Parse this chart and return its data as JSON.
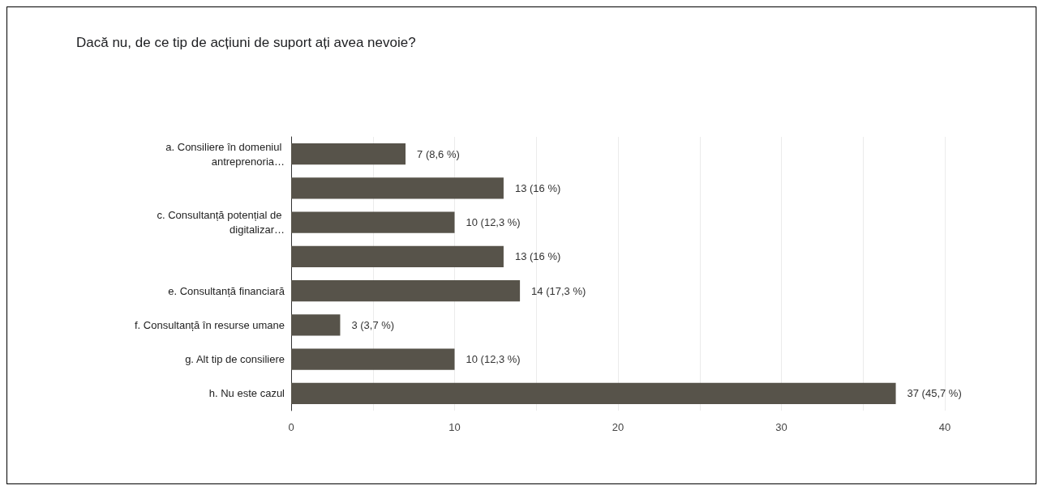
{
  "chart_data": {
    "type": "bar",
    "orientation": "horizontal",
    "title": "Dacă nu, de ce tip de acțiuni de suport ați avea nevoie?",
    "categories": [
      "a. Consiliere în domeniul antreprenoria…",
      null,
      "c. Consultanță potențial de digitalizar…",
      null,
      "e. Consultanță financiară",
      "f. Consultanță în resurse umane",
      "g. Alt tip de consiliere",
      "h. Nu este cazul"
    ],
    "values": [
      7,
      13,
      10,
      13,
      14,
      3,
      10,
      37
    ],
    "value_labels": [
      "7 (8,6 %)",
      "13 (16 %)",
      "10 (12,3 %)",
      "13 (16 %)",
      "14 (17,3 %)",
      "3 (3,7 %)",
      "10 (12,3 %)",
      "37 (45,7 %)"
    ],
    "color": "#57534a",
    "xlim": [
      0,
      40
    ],
    "xticks": [
      0,
      {
        "value": 5,
        "label": null
      },
      10,
      {
        "value": 15,
        "label": null
      },
      20,
      {
        "value": 25,
        "label": null
      },
      30,
      {
        "value": 35,
        "label": null
      },
      40
    ],
    "grid": "x"
  }
}
